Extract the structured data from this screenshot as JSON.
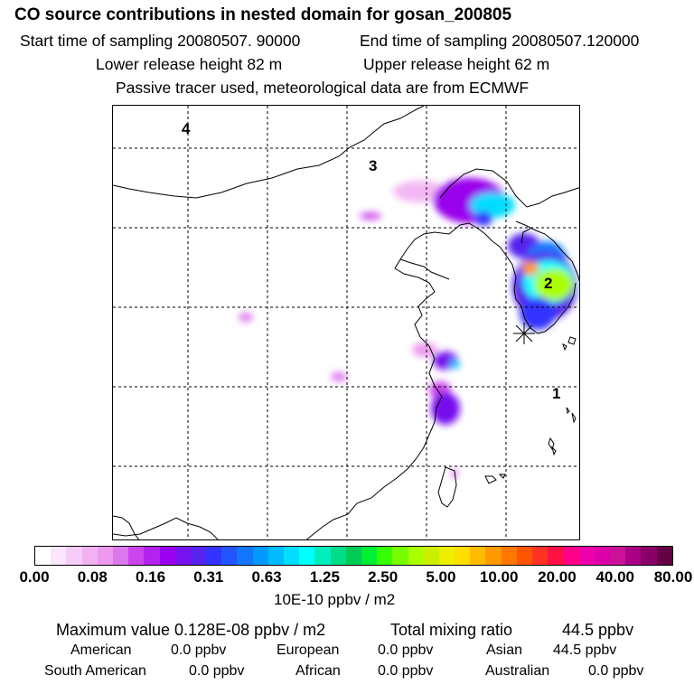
{
  "header": {
    "title": "CO  source contributions in nested domain for gosan_200805",
    "start_label": "Start time of sampling 20080507. 90000",
    "end_label": "End time of sampling 20080507.120000",
    "lower_label": "Lower release height   82 m",
    "upper_label": "Upper release height   62 m",
    "tracer_note": "Passive tracer used, meteorological data are from ECMWF"
  },
  "map": {
    "region_labels": [
      "4",
      "3",
      "2",
      "1"
    ]
  },
  "colorbar": {
    "ticks": [
      "0.00",
      "0.08",
      "0.16",
      "0.31",
      "0.63",
      "1.25",
      "2.50",
      "5.00",
      "10.00",
      "20.00",
      "40.00",
      "80.00"
    ],
    "unit": "10E-10 ppbv / m2",
    "colors": [
      "#ffffff",
      "#fbe6fb",
      "#f7ccf7",
      "#f2b2f2",
      "#ee99ee",
      "#dd77ee",
      "#cc44ee",
      "#b322ee",
      "#9900ee",
      "#7711ee",
      "#5522ee",
      "#3333ff",
      "#2255ff",
      "#1177ff",
      "#0099ff",
      "#00bbff",
      "#00ddff",
      "#00ffff",
      "#00eebb",
      "#00dd88",
      "#00cc55",
      "#00ee33",
      "#33ff00",
      "#77ff00",
      "#aaff00",
      "#ccee00",
      "#eeee00",
      "#ffdd00",
      "#ffbb00",
      "#ff9900",
      "#ff7700",
      "#ff5500",
      "#ff3322",
      "#ff1144",
      "#ff0088",
      "#ee00aa",
      "#dd00aa",
      "#cc1199",
      "#aa0088",
      "#880066",
      "#660044"
    ]
  },
  "summary": {
    "max_label": "Maximum value  0.128E-08 ppbv / m2",
    "total_label": "Total mixing ratio",
    "total_value": "44.5 ppbv",
    "sources": [
      {
        "name": "American",
        "value": "0.0 ppbv"
      },
      {
        "name": "European",
        "value": "0.0 ppbv"
      },
      {
        "name": "Asian",
        "value": "44.5 ppbv"
      },
      {
        "name": "South American",
        "value": "0.0 ppbv"
      },
      {
        "name": "African",
        "value": "0.0 ppbv"
      },
      {
        "name": "Australian",
        "value": "0.0 ppbv"
      }
    ]
  }
}
